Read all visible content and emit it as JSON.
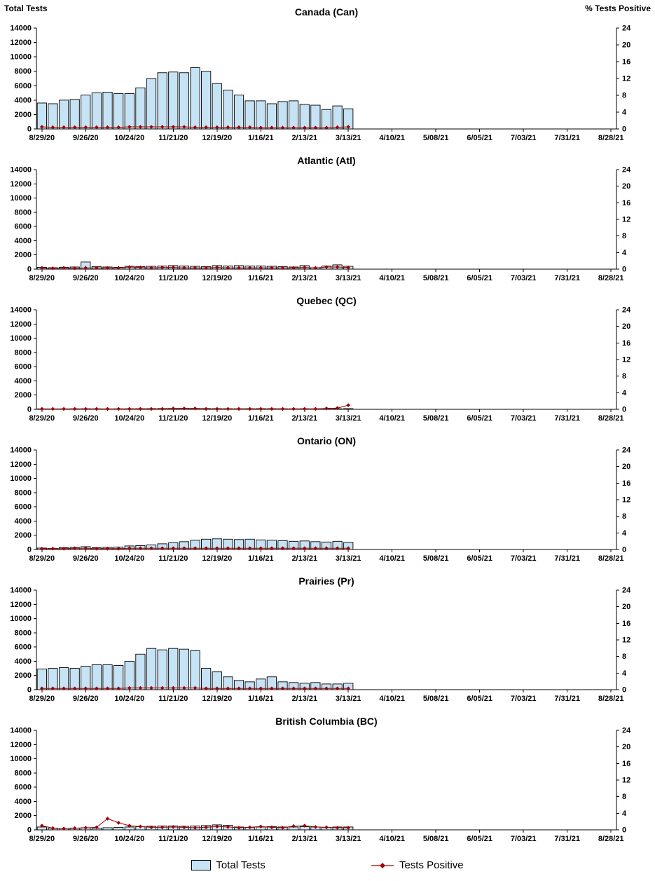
{
  "y_left": {
    "title": "Total Tests",
    "min": 0,
    "max": 14000,
    "step": 2000
  },
  "y_right": {
    "title": "% Tests Positive",
    "min": 0,
    "max": 24,
    "step": 4
  },
  "x_axis": {
    "tick_labels": [
      "8/29/20",
      "9/26/20",
      "10/24/20",
      "11/21/20",
      "12/19/20",
      "1/16/21",
      "2/13/21",
      "3/13/21",
      "4/10/21",
      "5/08/21",
      "6/05/21",
      "7/03/21",
      "7/31/21",
      "8/28/21"
    ],
    "weeks_total": 53,
    "label_every_weeks": 4
  },
  "legend": {
    "bars_label": "Total Tests",
    "line_label": "Tests Positive"
  },
  "colors": {
    "bar_fill": "#C5E3F5",
    "bar_border": "#000000",
    "line": "#A00000",
    "text": "#000000"
  },
  "chart_data": [
    {
      "type": "bar+line",
      "title": "Canada (Can)",
      "ylim_left": [
        0,
        14000
      ],
      "ylim_right": [
        0,
        24
      ],
      "categories": [
        "8/29/20",
        "9/5/20",
        "9/12/20",
        "9/19/20",
        "9/26/20",
        "10/3/20",
        "10/10/20",
        "10/17/20",
        "10/24/20",
        "10/31/20",
        "11/7/20",
        "11/14/20",
        "11/21/20",
        "11/28/20",
        "12/5/20",
        "12/12/20",
        "12/19/20",
        "12/26/20",
        "1/2/21",
        "1/9/21",
        "1/16/21",
        "1/23/21",
        "1/30/21",
        "2/6/21",
        "2/13/21",
        "2/20/21",
        "2/27/21",
        "3/6/21",
        "3/13/21"
      ],
      "series": [
        {
          "name": "Total Tests",
          "type": "bar",
          "axis": "left",
          "values": [
            3600,
            3500,
            4000,
            4100,
            4700,
            5000,
            5100,
            4900,
            4900,
            5700,
            7000,
            7800,
            7900,
            7800,
            8500,
            8000,
            6300,
            5400,
            4700,
            3900,
            3900,
            3500,
            3800,
            3900,
            3400,
            3300,
            2700,
            3200,
            2800
          ]
        },
        {
          "name": "Tests Positive",
          "type": "line",
          "axis": "right",
          "values": [
            0.5,
            0.4,
            0.4,
            0.4,
            0.4,
            0.4,
            0.4,
            0.4,
            0.5,
            0.5,
            0.5,
            0.5,
            0.5,
            0.5,
            0.4,
            0.4,
            0.4,
            0.4,
            0.4,
            0.4,
            0.3,
            0.3,
            0.3,
            0.3,
            0.3,
            0.3,
            0.3,
            0.4,
            0.5
          ]
        }
      ]
    },
    {
      "type": "bar+line",
      "title": "Atlantic (Atl)",
      "ylim_left": [
        0,
        14000
      ],
      "ylim_right": [
        0,
        24
      ],
      "categories": [
        "8/29/20",
        "9/5/20",
        "9/12/20",
        "9/19/20",
        "9/26/20",
        "10/3/20",
        "10/10/20",
        "10/17/20",
        "10/24/20",
        "10/31/20",
        "11/7/20",
        "11/14/20",
        "11/21/20",
        "11/28/20",
        "12/5/20",
        "12/12/20",
        "12/19/20",
        "12/26/20",
        "1/2/21",
        "1/9/21",
        "1/16/21",
        "1/23/21",
        "1/30/21",
        "2/6/21",
        "2/13/21",
        "2/20/21",
        "2/27/21",
        "3/6/21",
        "3/13/21"
      ],
      "series": [
        {
          "name": "Total Tests",
          "type": "bar",
          "axis": "left",
          "values": [
            250,
            200,
            250,
            300,
            1000,
            350,
            300,
            250,
            400,
            350,
            400,
            450,
            500,
            450,
            400,
            350,
            500,
            450,
            500,
            450,
            450,
            400,
            350,
            300,
            500,
            200,
            450,
            600,
            400
          ]
        },
        {
          "name": "Tests Positive",
          "type": "line",
          "axis": "right",
          "values": [
            0.3,
            0.2,
            0.3,
            0.2,
            0.3,
            0.3,
            0.3,
            0.3,
            0.5,
            0.4,
            0.3,
            0.4,
            0.4,
            0.3,
            0.3,
            0.3,
            0.4,
            0.3,
            0.3,
            0.3,
            0.3,
            0.3,
            0.3,
            0.3,
            0.4,
            0.3,
            0.5,
            0.5,
            0.4
          ]
        }
      ]
    },
    {
      "type": "bar+line",
      "title": "Quebec (QC)",
      "ylim_left": [
        0,
        14000
      ],
      "ylim_right": [
        0,
        24
      ],
      "categories": [
        "8/29/20",
        "9/5/20",
        "9/12/20",
        "9/19/20",
        "9/26/20",
        "10/3/20",
        "10/10/20",
        "10/17/20",
        "10/24/20",
        "10/31/20",
        "11/7/20",
        "11/14/20",
        "11/21/20",
        "11/28/20",
        "12/5/20",
        "12/12/20",
        "12/19/20",
        "12/26/20",
        "1/2/21",
        "1/9/21",
        "1/16/21",
        "1/23/21",
        "1/30/21",
        "2/6/21",
        "2/13/21",
        "2/20/21",
        "2/27/21",
        "3/6/21",
        "3/13/21"
      ],
      "series": [
        {
          "name": "Total Tests",
          "type": "bar",
          "axis": "left",
          "values": [
            60,
            50,
            60,
            70,
            80,
            70,
            60,
            70,
            80,
            90,
            100,
            110,
            120,
            130,
            120,
            110,
            100,
            90,
            80,
            90,
            100,
            90,
            80,
            70,
            80,
            70,
            60,
            80,
            100
          ]
        },
        {
          "name": "Tests Positive",
          "type": "line",
          "axis": "right",
          "values": [
            0.1,
            0.1,
            0.1,
            0.1,
            0.1,
            0.1,
            0.1,
            0.1,
            0.1,
            0.1,
            0.1,
            0.1,
            0.2,
            0.2,
            0.2,
            0.1,
            0.1,
            0.1,
            0.1,
            0.1,
            0.1,
            0.1,
            0.1,
            0.1,
            0.1,
            0.1,
            0.2,
            0.3,
            1.0
          ]
        }
      ]
    },
    {
      "type": "bar+line",
      "title": "Ontario (ON)",
      "ylim_left": [
        0,
        14000
      ],
      "ylim_right": [
        0,
        24
      ],
      "categories": [
        "8/29/20",
        "9/5/20",
        "9/12/20",
        "9/19/20",
        "9/26/20",
        "10/3/20",
        "10/10/20",
        "10/17/20",
        "10/24/20",
        "10/31/20",
        "11/7/20",
        "11/14/20",
        "11/21/20",
        "11/28/20",
        "12/5/20",
        "12/12/20",
        "12/19/20",
        "12/26/20",
        "1/2/21",
        "1/9/21",
        "1/16/21",
        "1/23/21",
        "1/30/21",
        "2/6/21",
        "2/13/21",
        "2/20/21",
        "2/27/21",
        "3/6/21",
        "3/13/21"
      ],
      "series": [
        {
          "name": "Total Tests",
          "type": "bar",
          "axis": "left",
          "values": [
            200,
            150,
            250,
            300,
            400,
            250,
            300,
            350,
            500,
            550,
            650,
            800,
            950,
            1100,
            1300,
            1450,
            1500,
            1450,
            1400,
            1450,
            1350,
            1300,
            1250,
            1150,
            1200,
            1100,
            1050,
            1150,
            1000
          ]
        },
        {
          "name": "Tests Positive",
          "type": "line",
          "axis": "right",
          "values": [
            0.2,
            0.2,
            0.2,
            0.3,
            0.3,
            0.2,
            0.2,
            0.2,
            0.3,
            0.3,
            0.3,
            0.3,
            0.3,
            0.3,
            0.3,
            0.3,
            0.3,
            0.3,
            0.3,
            0.3,
            0.3,
            0.3,
            0.3,
            0.3,
            0.3,
            0.3,
            0.3,
            0.3,
            0.3
          ]
        }
      ]
    },
    {
      "type": "bar+line",
      "title": "Prairies (Pr)",
      "ylim_left": [
        0,
        14000
      ],
      "ylim_right": [
        0,
        24
      ],
      "categories": [
        "8/29/20",
        "9/5/20",
        "9/12/20",
        "9/19/20",
        "9/26/20",
        "10/3/20",
        "10/10/20",
        "10/17/20",
        "10/24/20",
        "10/31/20",
        "11/7/20",
        "11/14/20",
        "11/21/20",
        "11/28/20",
        "12/5/20",
        "12/12/20",
        "12/19/20",
        "12/26/20",
        "1/2/21",
        "1/9/21",
        "1/16/21",
        "1/23/21",
        "1/30/21",
        "2/6/21",
        "2/13/21",
        "2/20/21",
        "2/27/21",
        "3/6/21",
        "3/13/21"
      ],
      "series": [
        {
          "name": "Total Tests",
          "type": "bar",
          "axis": "left",
          "values": [
            2900,
            3000,
            3100,
            3000,
            3300,
            3500,
            3500,
            3400,
            4000,
            5000,
            5800,
            5600,
            5800,
            5700,
            5500,
            3000,
            2500,
            1800,
            1300,
            1100,
            1500,
            1800,
            1100,
            1000,
            900,
            1000,
            800,
            800,
            900
          ]
        },
        {
          "name": "Tests Positive",
          "type": "line",
          "axis": "right",
          "values": [
            0.3,
            0.3,
            0.3,
            0.3,
            0.3,
            0.3,
            0.3,
            0.3,
            0.4,
            0.4,
            0.4,
            0.4,
            0.4,
            0.4,
            0.4,
            0.3,
            0.3,
            0.3,
            0.3,
            0.3,
            0.3,
            0.3,
            0.3,
            0.3,
            0.3,
            0.3,
            0.3,
            0.3,
            0.3
          ]
        }
      ]
    },
    {
      "type": "bar+line",
      "title": "British Columbia (BC)",
      "ylim_left": [
        0,
        14000
      ],
      "ylim_right": [
        0,
        24
      ],
      "categories": [
        "8/29/20",
        "9/5/20",
        "9/12/20",
        "9/19/20",
        "9/26/20",
        "10/3/20",
        "10/10/20",
        "10/17/20",
        "10/24/20",
        "10/31/20",
        "11/7/20",
        "11/14/20",
        "11/21/20",
        "11/28/20",
        "12/5/20",
        "12/12/20",
        "12/19/20",
        "12/26/20",
        "1/2/21",
        "1/9/21",
        "1/16/21",
        "1/23/21",
        "1/30/21",
        "2/6/21",
        "2/13/21",
        "2/20/21",
        "2/27/21",
        "3/6/21",
        "3/13/21"
      ],
      "series": [
        {
          "name": "Total Tests",
          "type": "bar",
          "axis": "left",
          "values": [
            400,
            250,
            200,
            250,
            300,
            250,
            300,
            350,
            400,
            450,
            500,
            550,
            550,
            500,
            550,
            600,
            700,
            650,
            400,
            350,
            400,
            450,
            400,
            400,
            450,
            400,
            350,
            400,
            400
          ]
        },
        {
          "name": "Tests Positive",
          "type": "line",
          "axis": "right",
          "values": [
            1.0,
            0.4,
            0.3,
            0.4,
            0.5,
            0.6,
            2.7,
            1.7,
            1.0,
            0.8,
            0.6,
            0.6,
            0.7,
            0.6,
            0.5,
            0.6,
            0.8,
            0.7,
            0.5,
            0.6,
            0.8,
            0.6,
            0.5,
            0.9,
            1.0,
            0.7,
            0.6,
            0.5,
            0.5
          ]
        }
      ]
    }
  ]
}
